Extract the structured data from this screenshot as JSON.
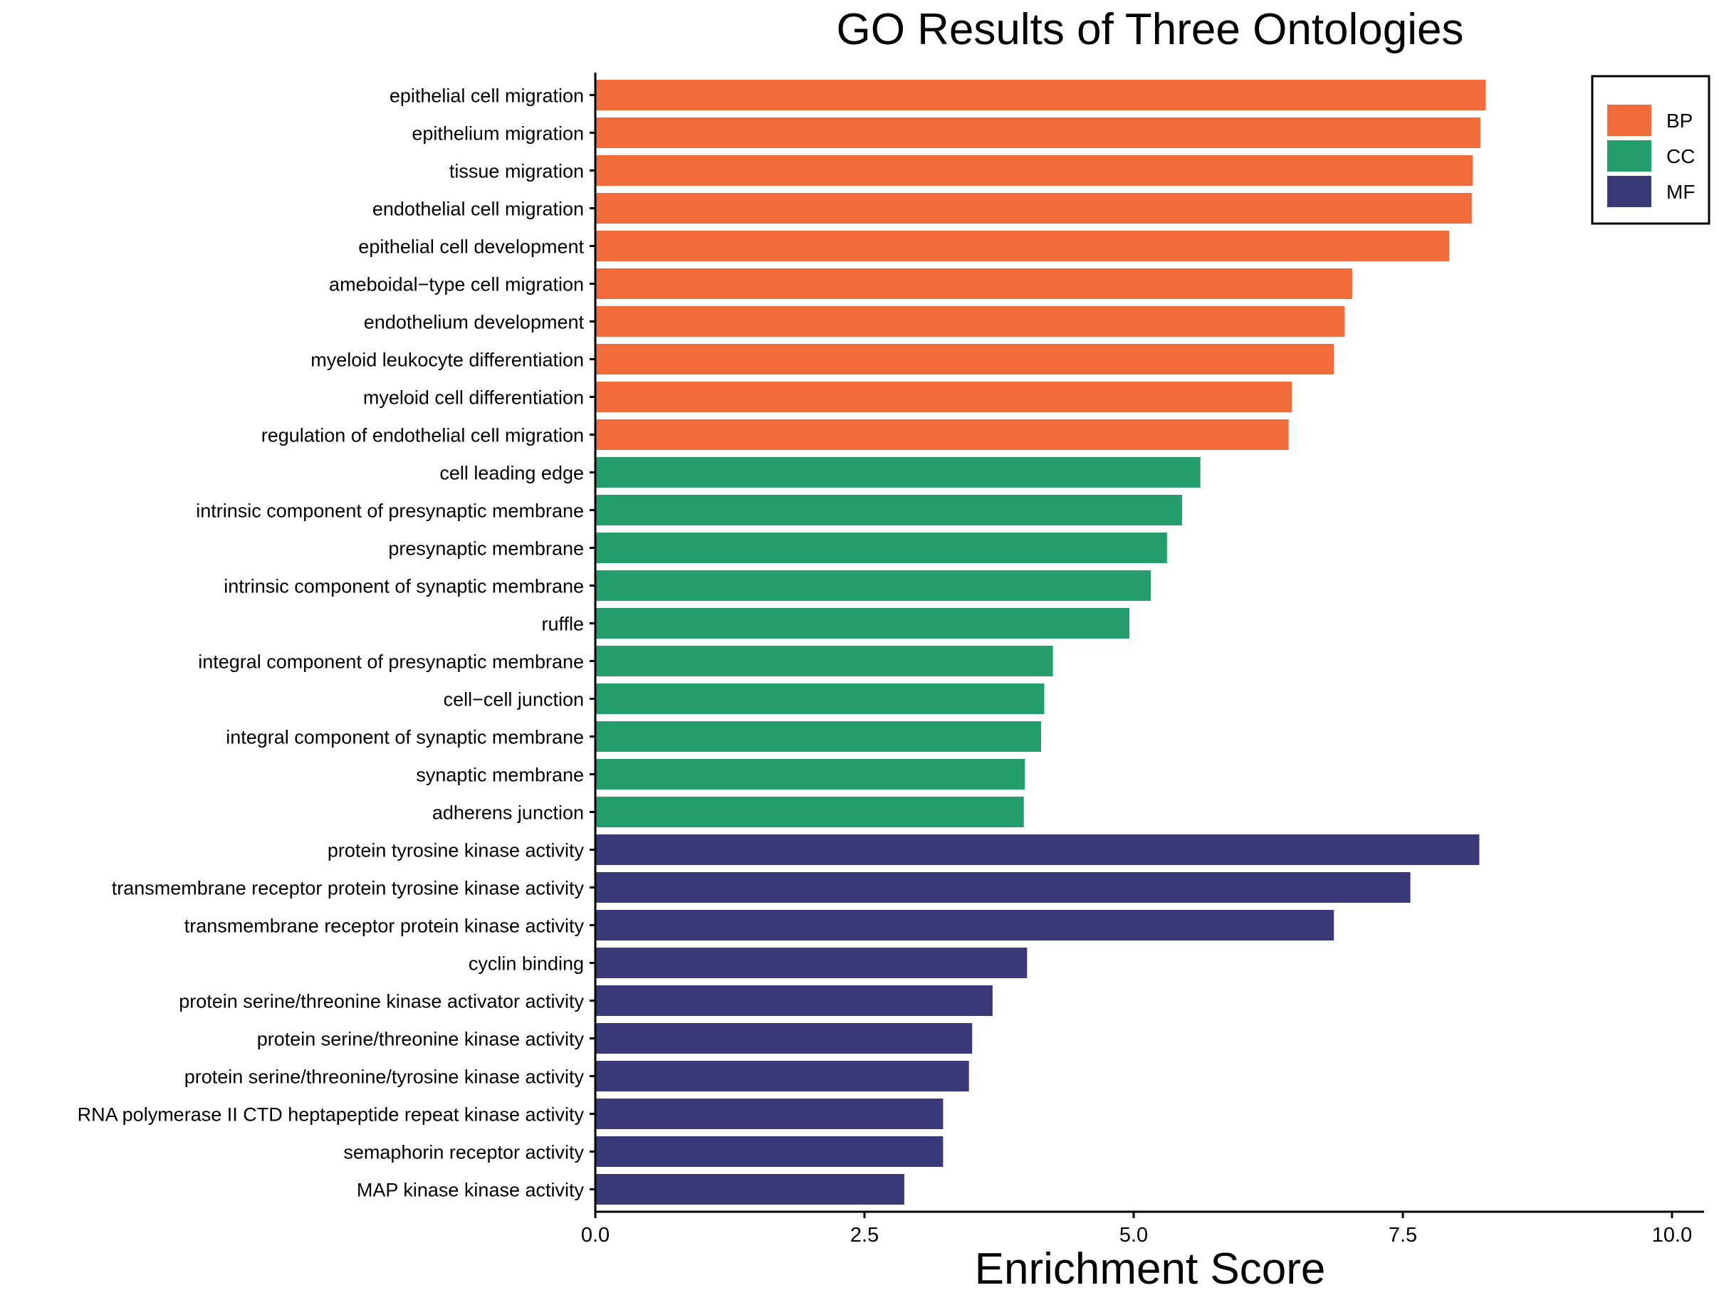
{
  "chart_data": {
    "type": "bar",
    "orientation": "horizontal",
    "title": "GO Results of Three Ontologies",
    "xlabel": "Enrichment Score",
    "ylabel": "",
    "xlim": [
      0,
      10.3
    ],
    "xticks": [
      "0.0",
      "2.5",
      "5.0",
      "7.5",
      "10.0"
    ],
    "grid": false,
    "legend_position": "top-right",
    "colors": {
      "BP": "#F26B3A",
      "CC": "#259E6E",
      "MF": "#3A3A78"
    },
    "legend": [
      "BP",
      "CC",
      "MF"
    ],
    "categories": [
      "epithelial cell migration",
      "epithelium migration",
      "tissue migration",
      "endothelial cell migration",
      "epithelial cell development",
      "ameboidal−type cell migration",
      "endothelium development",
      "myeloid leukocyte differentiation",
      "myeloid cell differentiation",
      "regulation of endothelial cell migration",
      "cell leading edge",
      "intrinsic component of presynaptic membrane",
      "presynaptic membrane",
      "intrinsic component of synaptic membrane",
      "ruffle",
      "integral component of presynaptic membrane",
      "cell−cell junction",
      "integral component of synaptic membrane",
      "synaptic membrane",
      "adherens junction",
      "protein tyrosine kinase activity",
      "transmembrane receptor protein tyrosine kinase activity",
      "transmembrane receptor protein kinase activity",
      "cyclin binding",
      "protein serine/threonine kinase activator activity",
      "protein serine/threonine kinase activity",
      "protein serine/threonine/tyrosine kinase activity",
      "RNA polymerase II CTD heptapeptide repeat kinase activity",
      "semaphorin receptor activity",
      "MAP kinase kinase activity"
    ],
    "values": [
      8.27,
      8.22,
      8.15,
      8.14,
      7.93,
      7.03,
      6.96,
      6.86,
      6.47,
      6.44,
      5.62,
      5.45,
      5.31,
      5.16,
      4.96,
      4.25,
      4.17,
      4.14,
      3.99,
      3.98,
      8.21,
      7.57,
      6.86,
      4.01,
      3.69,
      3.5,
      3.47,
      3.23,
      3.23,
      2.87
    ],
    "ontology": [
      "BP",
      "BP",
      "BP",
      "BP",
      "BP",
      "BP",
      "BP",
      "BP",
      "BP",
      "BP",
      "CC",
      "CC",
      "CC",
      "CC",
      "CC",
      "CC",
      "CC",
      "CC",
      "CC",
      "CC",
      "MF",
      "MF",
      "MF",
      "MF",
      "MF",
      "MF",
      "MF",
      "MF",
      "MF",
      "MF"
    ]
  }
}
